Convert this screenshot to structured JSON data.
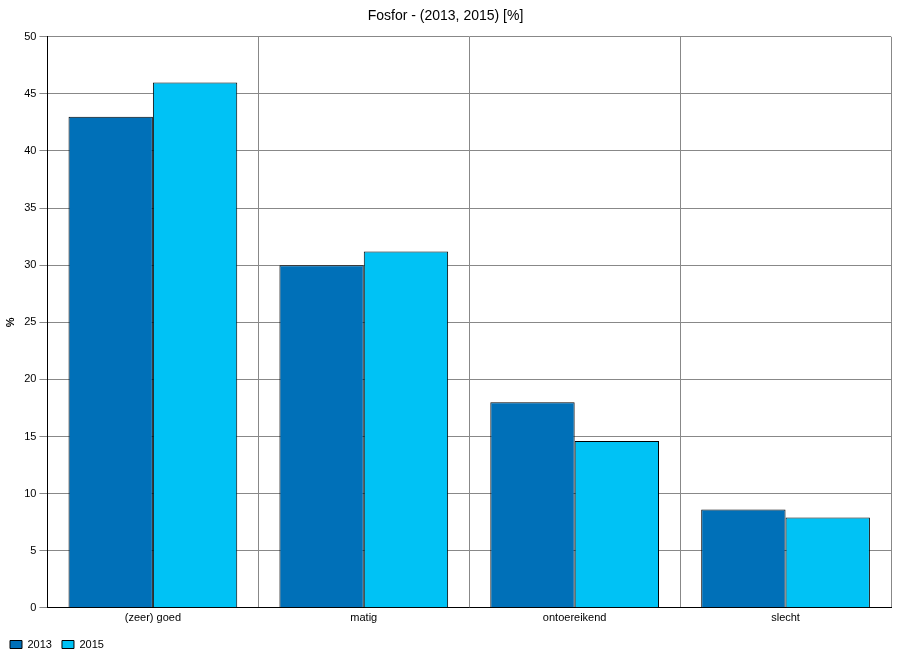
{
  "chart_data": {
    "type": "bar",
    "title": "Fosfor - (2013, 2015) [%]",
    "y_label": "%",
    "categories": [
      "(zeer) goed",
      "matig",
      "ontoereikend",
      "slecht"
    ],
    "series": [
      {
        "name": "2013",
        "color": "#0070b8",
        "values": [
          43,
          30,
          18,
          8.6
        ]
      },
      {
        "name": "2015",
        "color": "#00c2f5",
        "values": [
          46,
          31.2,
          14.6,
          7.9
        ]
      }
    ],
    "ylim": [
      0,
      50
    ],
    "yticks": [
      0,
      5,
      10,
      15,
      20,
      25,
      30,
      35,
      40,
      45,
      50
    ],
    "grid": true,
    "legend": "bottom-left"
  }
}
